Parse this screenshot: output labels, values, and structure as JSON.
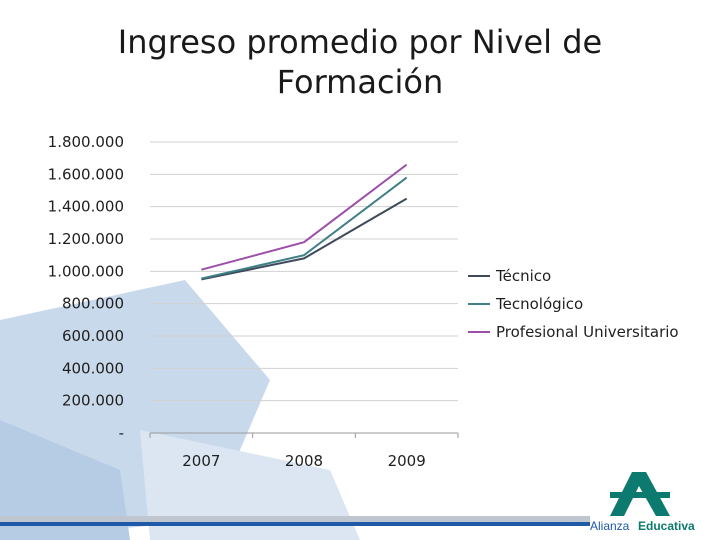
{
  "slide": {
    "title_line1": "Ingreso promedio por Nivel de",
    "title_line2": "Formación"
  },
  "logo": {
    "label_light": "Alianza",
    "label_bold": "Educativa"
  },
  "colors": {
    "tecnico": "#3f4a5a",
    "tecnologico": "#3f7f86",
    "profesional": "#9b4fa8",
    "decor_blue": "#c9d9ec",
    "logo_green": "#0c7a6e",
    "logo_blue": "#1f5aa8"
  },
  "chart_data": {
    "type": "line",
    "title": "Ingreso promedio por Nivel de Formación",
    "xlabel": "",
    "ylabel": "",
    "categories": [
      "2007",
      "2008",
      "2009"
    ],
    "y_tick_labels": [
      "-",
      "200.000",
      "400.000",
      "600.000",
      "800.000",
      "1.000.000",
      "1.200.000",
      "1.400.000",
      "1.600.000",
      "1.800.000"
    ],
    "ylim": [
      0,
      1800000
    ],
    "grid": true,
    "legend": "right",
    "series": [
      {
        "name": "Técnico",
        "values": [
          950000,
          1080000,
          1450000
        ]
      },
      {
        "name": "Tecnológico",
        "values": [
          955000,
          1100000,
          1580000
        ]
      },
      {
        "name": "Profesional Universitario",
        "values": [
          1010000,
          1180000,
          1660000
        ]
      }
    ]
  }
}
